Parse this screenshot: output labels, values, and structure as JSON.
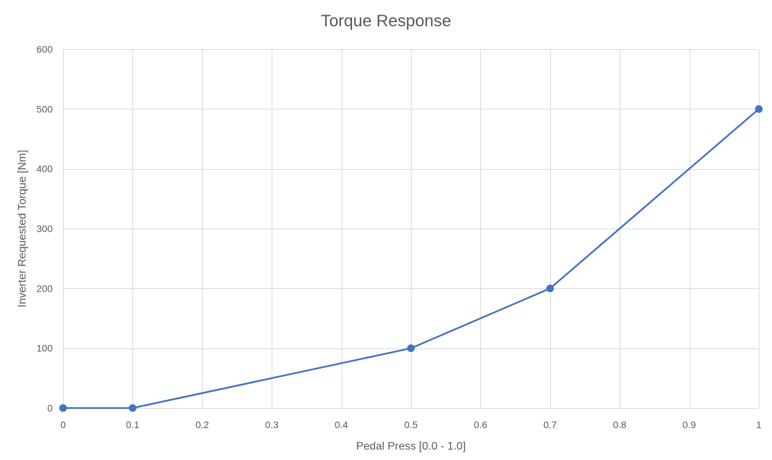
{
  "chart_data": {
    "type": "line",
    "title": "Torque Response",
    "xlabel": "Pedal Press [0.0 - 1.0]",
    "ylabel": "Inverter Requested Torque [Nm]",
    "xlim": [
      0,
      1
    ],
    "ylim": [
      0,
      600
    ],
    "x_ticks": [
      0,
      0.1,
      0.2,
      0.3,
      0.4,
      0.5,
      0.6,
      0.7,
      0.8,
      0.9,
      1
    ],
    "x_tick_labels": [
      "0",
      "0.1",
      "0.2",
      "0.3",
      "0.4",
      "0.5",
      "0.6",
      "0.7",
      "0.8",
      "0.9",
      "1"
    ],
    "y_ticks": [
      0,
      100,
      200,
      300,
      400,
      500,
      600
    ],
    "y_tick_labels": [
      "0",
      "100",
      "200",
      "300",
      "400",
      "500",
      "600"
    ],
    "grid": true,
    "legend": "none",
    "series": [
      {
        "color": "#4472c4",
        "marker": "circle",
        "points": [
          {
            "x": 0,
            "y": 0
          },
          {
            "x": 0.1,
            "y": 0
          },
          {
            "x": 0.5,
            "y": 100
          },
          {
            "x": 0.7,
            "y": 200
          },
          {
            "x": 1,
            "y": 500
          }
        ]
      }
    ]
  }
}
